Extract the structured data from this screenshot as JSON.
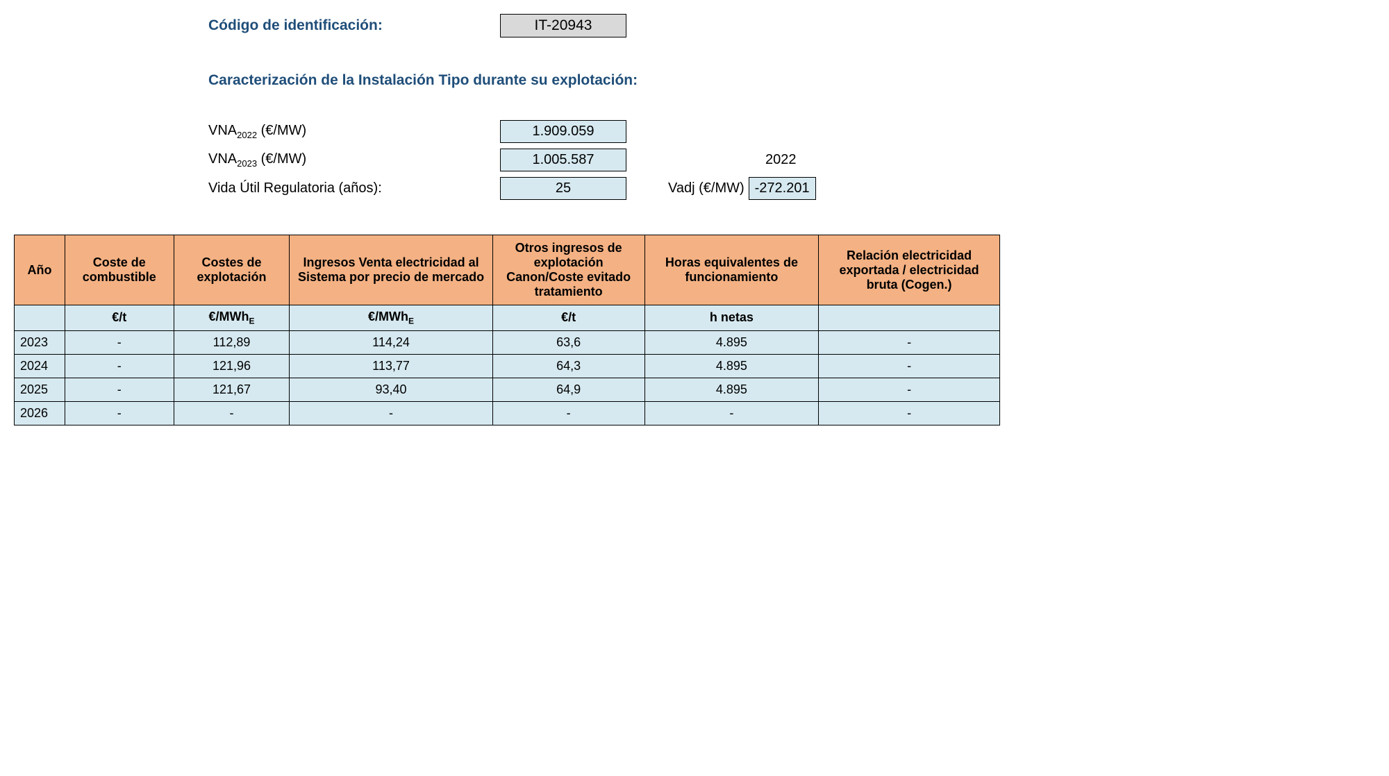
{
  "header": {
    "code_label": "Código de identificación:",
    "code_value": "IT-20943",
    "section_title": "Caracterización de la Instalación Tipo durante su explotación:"
  },
  "params": {
    "vna2022_label_pre": "VNA",
    "vna2022_sub": "2022",
    "vna2022_label_post": " (€/MW)",
    "vna2022_value": "1.909.059",
    "vna2023_label_pre": "VNA",
    "vna2023_sub": "2023",
    "vna2023_label_post": " (€/MW)",
    "vna2023_value": "1.005.587",
    "side_year": "2022",
    "vida_label": "Vida Útil Regulatoria (años):",
    "vida_value": "25",
    "vadj_label": "Vadj (€/MW)",
    "vadj_value": "-272.201"
  },
  "table": {
    "headers": {
      "year": "Año",
      "fuel": "Coste de combustible",
      "opex": "Costes de explotación",
      "market": "Ingresos Venta electricidad al Sistema por precio de mercado",
      "other": "Otros ingresos de explotación Canon/Coste evitado tratamiento",
      "hours": "Horas equivalentes de funcionamiento",
      "ratio": "Relación electricidad exportada / electricidad bruta (Cogen.)"
    },
    "units": {
      "year": "",
      "fuel": "€/t",
      "opex_pre": "€/MWh",
      "market_pre": "€/MWh",
      "other": "€/t",
      "hours": "h netas",
      "ratio": ""
    },
    "rows": [
      {
        "year": "2023",
        "fuel": "-",
        "opex": "112,89",
        "market": "114,24",
        "other": "63,6",
        "hours": "4.895",
        "ratio": "-"
      },
      {
        "year": "2024",
        "fuel": "-",
        "opex": "121,96",
        "market": "113,77",
        "other": "64,3",
        "hours": "4.895",
        "ratio": "-"
      },
      {
        "year": "2025",
        "fuel": "-",
        "opex": "121,67",
        "market": "93,40",
        "other": "64,9",
        "hours": "4.895",
        "ratio": "-"
      },
      {
        "year": "2026",
        "fuel": "-",
        "opex": "-",
        "market": "-",
        "other": "-",
        "hours": "-",
        "ratio": "-"
      }
    ],
    "colors": {
      "header_bg": "#f4b183",
      "cell_bg": "#d6e9f0",
      "border": "#000000",
      "title_color": "#1f4e79"
    }
  }
}
